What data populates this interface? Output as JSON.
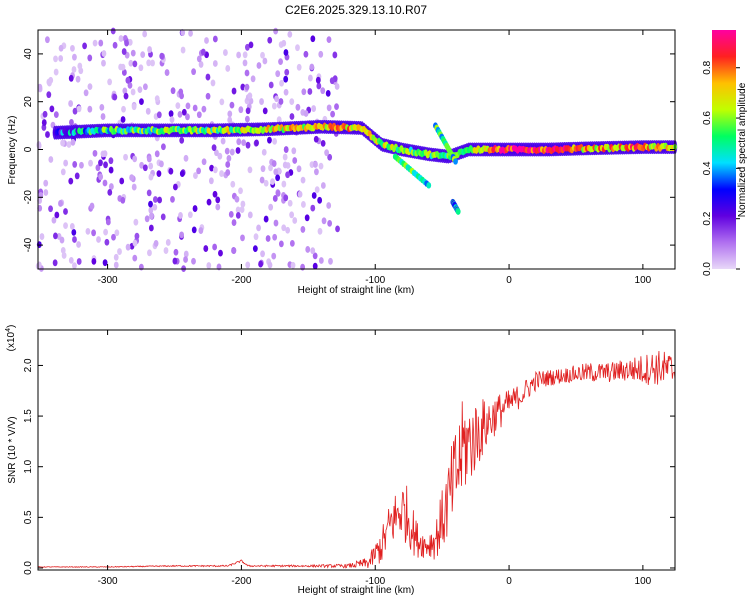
{
  "figure_title": "C2E6.2025.329.13.10.R07",
  "chart_data": [
    {
      "type": "heatmap",
      "name": "spectrogram",
      "title": "C2E6.2025.329.13.10.R07",
      "xlabel": "Height of straight line (km)",
      "ylabel": "Frequency (Hz)",
      "xlim": [
        -352,
        124
      ],
      "ylim": [
        -50,
        50
      ],
      "xticks": [
        -300,
        -200,
        -100,
        0,
        100
      ],
      "yticks": [
        -40,
        -20,
        0,
        20,
        40
      ],
      "colorbar": {
        "label": "Normalized spectral amplitude",
        "range": [
          0,
          0.95
        ],
        "ticks": [
          0.0,
          0.2,
          0.4,
          0.6,
          0.8
        ],
        "colormap": [
          "#e8d8f8",
          "#b070f0",
          "#6000e0",
          "#0000ff",
          "#00e0ff",
          "#00ff60",
          "#c0ff00",
          "#ffc000",
          "#ff2020",
          "#ff00a0"
        ]
      },
      "ridge": [
        {
          "x": -340,
          "f": 7,
          "amp": 0.3
        },
        {
          "x": -300,
          "f": 8,
          "amp": 0.5
        },
        {
          "x": -260,
          "f": 8,
          "amp": 0.55
        },
        {
          "x": -220,
          "f": 8,
          "amp": 0.6
        },
        {
          "x": -180,
          "f": 8.5,
          "amp": 0.65
        },
        {
          "x": -140,
          "f": 9.5,
          "amp": 0.7
        },
        {
          "x": -110,
          "f": 9,
          "amp": 0.75
        },
        {
          "x": -95,
          "f": 2,
          "amp": 0.6
        },
        {
          "x": -80,
          "f": 0,
          "amp": 0.55
        },
        {
          "x": -60,
          "f": -2,
          "amp": 0.55
        },
        {
          "x": -45,
          "f": -3,
          "amp": 0.5
        },
        {
          "x": -30,
          "f": 0,
          "amp": 0.65
        },
        {
          "x": -10,
          "f": 0,
          "amp": 0.8
        },
        {
          "x": 0,
          "f": 0,
          "amp": 0.9
        },
        {
          "x": 30,
          "f": 0,
          "amp": 0.85
        },
        {
          "x": 60,
          "f": 0.5,
          "amp": 0.7
        },
        {
          "x": 100,
          "f": 1,
          "amp": 0.75
        },
        {
          "x": 124,
          "f": 1,
          "amp": 0.6
        }
      ],
      "branches": [
        {
          "x_start": -85,
          "f_start": -3,
          "x_end": -60,
          "f_end": -15,
          "amp": 0.5
        },
        {
          "x_start": -55,
          "f_start": 10,
          "x_end": -40,
          "f_end": -5,
          "amp": 0.5
        },
        {
          "x_start": -42,
          "f_start": -22,
          "x_end": -38,
          "f_end": -26,
          "amp": 0.4
        }
      ]
    },
    {
      "type": "line",
      "name": "snr",
      "xlabel": "Height of straight line (km)",
      "ylabel": "SNR (10 * V/V)",
      "scale_label": "(x10",
      "scale_exponent": "4",
      "xlim": [
        -352,
        124
      ],
      "ylim": [
        -0.02,
        2.35
      ],
      "xticks": [
        -300,
        -200,
        -100,
        0,
        100
      ],
      "yticks": [
        0.0,
        0.5,
        1.0,
        1.5,
        2.0
      ],
      "ytick_labels": [
        "0.0",
        "0.5",
        "1.0",
        "1.5",
        "2.0"
      ],
      "series": [
        {
          "name": "SNR",
          "color": "#e02020",
          "x": [
            -352,
            -300,
            -250,
            -210,
            -200,
            -195,
            -150,
            -120,
            -105,
            -95,
            -88,
            -80,
            -75,
            -70,
            -62,
            -55,
            -48,
            -40,
            -34,
            -28,
            -20,
            -10,
            0,
            10,
            20,
            30,
            45,
            60,
            75,
            90,
            100,
            110,
            124
          ],
          "y": [
            0.01,
            0.01,
            0.02,
            0.02,
            0.07,
            0.02,
            0.02,
            0.02,
            0.05,
            0.22,
            0.45,
            0.58,
            0.5,
            0.3,
            0.22,
            0.28,
            0.55,
            0.9,
            1.2,
            1.25,
            1.38,
            1.52,
            1.62,
            1.72,
            1.85,
            1.88,
            1.91,
            1.93,
            1.93,
            1.96,
            1.96,
            1.98,
            1.95
          ],
          "noise": [
            0.003,
            0.004,
            0.006,
            0.008,
            0.01,
            0.008,
            0.01,
            0.02,
            0.06,
            0.18,
            0.25,
            0.3,
            0.3,
            0.2,
            0.12,
            0.2,
            0.35,
            0.5,
            0.5,
            0.4,
            0.3,
            0.2,
            0.14,
            0.12,
            0.1,
            0.08,
            0.08,
            0.1,
            0.1,
            0.12,
            0.15,
            0.18,
            0.18
          ]
        }
      ]
    }
  ]
}
